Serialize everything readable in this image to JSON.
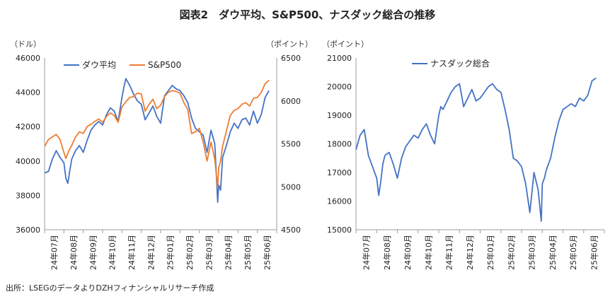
{
  "title": "図表2　ダウ平均、S&P500、ナスダック総合の推移",
  "source": "出所：LSEGのデータよりDZHフィナンシャルリサーチ作成",
  "colors": {
    "dow": "#4472C4",
    "sp500": "#ED7D31",
    "nasdaq": "#4472C4",
    "axis": "#9e9e9e"
  },
  "chart_data": [
    {
      "type": "line",
      "left_unit": "（ドル）",
      "right_unit": "（ポイント）",
      "ylim_left": [
        36000,
        46000
      ],
      "ylim_right": [
        4500,
        6500
      ],
      "yticks_left": [
        "36000",
        "38000",
        "40000",
        "42000",
        "44000",
        "46000"
      ],
      "yticks_right": [
        "4500",
        "5000",
        "5500",
        "6000",
        "6500"
      ],
      "x_categories": [
        "24年07月",
        "24年08月",
        "24年09月",
        "24年10月",
        "24年11月",
        "24年12月",
        "25年01月",
        "25年02月",
        "25年03月",
        "25年04月",
        "25年05月",
        "25年06月"
      ],
      "legend_position": "top-left",
      "grid": false,
      "series": [
        {
          "name": "ダウ平均",
          "axis": "left",
          "x": [
            0,
            0.2,
            0.4,
            0.6,
            0.8,
            1.0,
            1.1,
            1.2,
            1.3,
            1.4,
            1.6,
            1.8,
            2.0,
            2.2,
            2.4,
            2.6,
            2.8,
            3.0,
            3.2,
            3.4,
            3.6,
            3.8,
            4.0,
            4.1,
            4.2,
            4.4,
            4.6,
            4.8,
            5.0,
            5.2,
            5.4,
            5.6,
            5.8,
            6.0,
            6.2,
            6.4,
            6.6,
            6.8,
            7.0,
            7.2,
            7.4,
            7.6,
            7.8,
            8.0,
            8.2,
            8.4,
            8.6,
            8.8,
            8.95,
            9.0,
            9.1,
            9.2,
            9.4,
            9.6,
            9.8,
            10.0,
            10.2,
            10.4,
            10.6,
            10.8,
            11.0,
            11.2,
            11.4,
            11.6
          ],
          "values": [
            39300,
            39400,
            40100,
            40600,
            40200,
            39900,
            39000,
            38700,
            39400,
            40100,
            40600,
            40900,
            40500,
            41200,
            41800,
            42100,
            42300,
            42100,
            42700,
            43100,
            42900,
            42300,
            43700,
            44300,
            44800,
            44400,
            43900,
            43500,
            43300,
            42400,
            42800,
            43200,
            42600,
            42200,
            43800,
            44100,
            44400,
            44200,
            44100,
            43800,
            43400,
            42500,
            41900,
            41700,
            41500,
            40500,
            41800,
            41000,
            37600,
            38600,
            38300,
            40200,
            40900,
            41700,
            42200,
            41900,
            42400,
            42500,
            42100,
            42900,
            42200,
            42700,
            43700,
            44100
          ]
        },
        {
          "name": "S&P500",
          "axis": "right",
          "x": [
            0,
            0.2,
            0.4,
            0.6,
            0.8,
            1.0,
            1.1,
            1.2,
            1.3,
            1.4,
            1.6,
            1.8,
            2.0,
            2.2,
            2.4,
            2.6,
            2.8,
            3.0,
            3.2,
            3.4,
            3.6,
            3.8,
            4.0,
            4.1,
            4.2,
            4.4,
            4.6,
            4.8,
            5.0,
            5.2,
            5.4,
            5.6,
            5.8,
            6.0,
            6.2,
            6.4,
            6.6,
            6.8,
            7.0,
            7.2,
            7.4,
            7.6,
            7.8,
            8.0,
            8.2,
            8.4,
            8.6,
            8.8,
            8.95,
            9.0,
            9.1,
            9.2,
            9.4,
            9.6,
            9.8,
            10.0,
            10.2,
            10.4,
            10.6,
            10.8,
            11.0,
            11.2,
            11.4,
            11.6
          ],
          "values": [
            5470,
            5550,
            5580,
            5610,
            5550,
            5400,
            5330,
            5390,
            5440,
            5480,
            5580,
            5640,
            5620,
            5700,
            5730,
            5760,
            5790,
            5750,
            5820,
            5860,
            5830,
            5750,
            5930,
            5960,
            5990,
            6040,
            6050,
            6090,
            6080,
            5880,
            5960,
            6020,
            5910,
            5950,
            6050,
            6100,
            6120,
            6110,
            6090,
            5980,
            5900,
            5620,
            5640,
            5680,
            5520,
            5300,
            5520,
            5320,
            4990,
            5220,
            5300,
            5470,
            5650,
            5830,
            5890,
            5910,
            5960,
            5980,
            5940,
            6030,
            6040,
            6100,
            6200,
            6240
          ]
        }
      ]
    },
    {
      "type": "line",
      "unit": "（ポイント）",
      "ylim": [
        15000,
        21000
      ],
      "yticks": [
        "15000",
        "16000",
        "17000",
        "18000",
        "19000",
        "20000",
        "21000"
      ],
      "x_categories": [
        "24年07月",
        "24年08月",
        "24年09月",
        "24年10月",
        "24年11月",
        "24年12月",
        "25年01月",
        "25年02月",
        "25年03月",
        "25年04月",
        "25年05月",
        "25年06月"
      ],
      "legend_position": "top-center",
      "grid": false,
      "series": [
        {
          "name": "ナスダック総合",
          "axis": "left",
          "x": [
            0,
            0.2,
            0.4,
            0.6,
            0.8,
            1.0,
            1.1,
            1.2,
            1.3,
            1.4,
            1.6,
            1.8,
            2.0,
            2.2,
            2.4,
            2.6,
            2.8,
            3.0,
            3.2,
            3.4,
            3.6,
            3.8,
            4.0,
            4.1,
            4.2,
            4.4,
            4.6,
            4.8,
            5.0,
            5.2,
            5.4,
            5.6,
            5.8,
            6.0,
            6.2,
            6.4,
            6.6,
            6.8,
            7.0,
            7.2,
            7.4,
            7.6,
            7.8,
            8.0,
            8.2,
            8.4,
            8.6,
            8.8,
            8.95,
            9.0,
            9.1,
            9.2,
            9.4,
            9.6,
            9.8,
            10.0,
            10.2,
            10.4,
            10.6,
            10.8,
            11.0,
            11.2,
            11.4,
            11.6
          ],
          "values": [
            17800,
            18300,
            18500,
            17600,
            17200,
            16800,
            16200,
            16700,
            17300,
            17600,
            17700,
            17300,
            16800,
            17500,
            17900,
            18100,
            18300,
            18200,
            18500,
            18700,
            18300,
            18000,
            19000,
            19300,
            19200,
            19500,
            19800,
            20000,
            20100,
            19300,
            19600,
            19900,
            19500,
            19600,
            19800,
            20000,
            20100,
            19900,
            19800,
            19200,
            18500,
            17500,
            17400,
            17200,
            16600,
            15600,
            17000,
            16400,
            15300,
            16600,
            16800,
            17100,
            17500,
            18200,
            18800,
            19200,
            19300,
            19400,
            19300,
            19600,
            19500,
            19700,
            20200,
            20300
          ]
        }
      ]
    }
  ]
}
